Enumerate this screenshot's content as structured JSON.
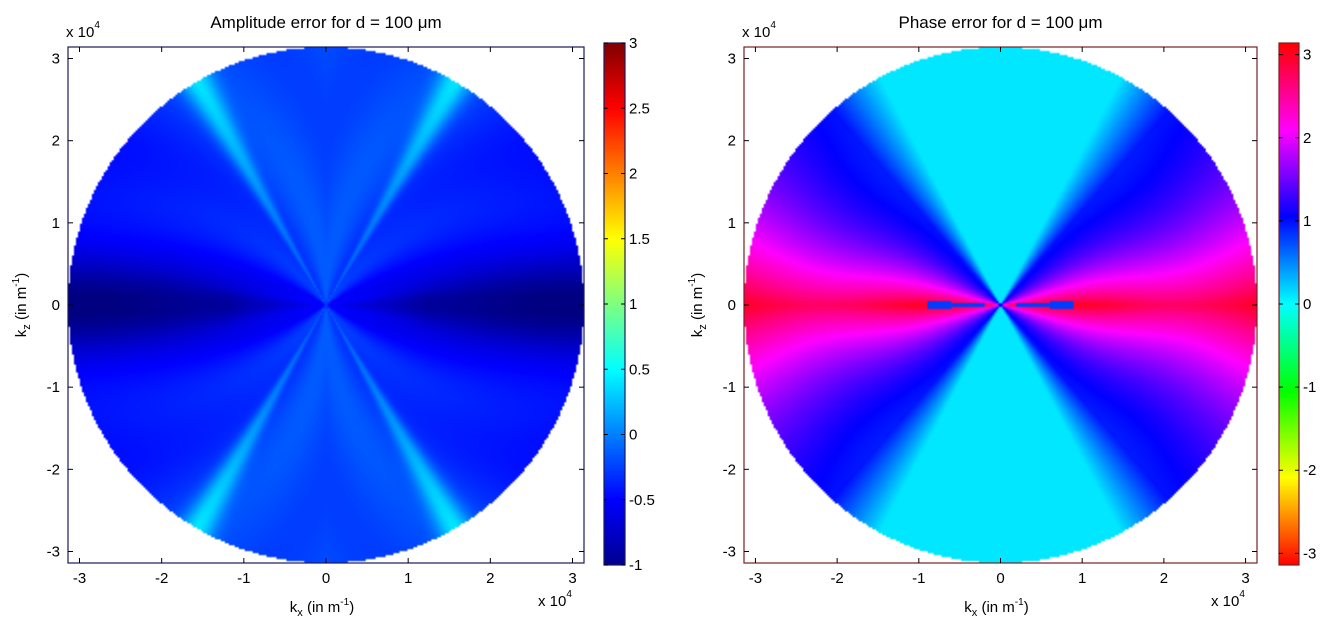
{
  "chart_data": [
    {
      "type": "heatmap",
      "title": "Amplitude error for d = 100 μm",
      "xlabel_main": "k",
      "xlabel_sub": "x",
      "xlabel_rest": " (in m",
      "xlabel_sup": "-1",
      "xlabel_end": ")",
      "ylabel_main": "k",
      "ylabel_sub": "z",
      "ylabel_rest": " (in m",
      "ylabel_sup": "-1",
      "ylabel_end": ")",
      "x_multiplier": "x 10",
      "x_multiplier_exp": "4",
      "y_multiplier": "x 10",
      "y_multiplier_exp": "4",
      "xlim": [
        -3.14,
        3.14
      ],
      "ylim": [
        -3.14,
        3.14
      ],
      "xticks": [
        -3,
        -2,
        -1,
        0,
        1,
        2,
        3
      ],
      "yticks": [
        -3,
        -2,
        -1,
        0,
        1,
        2,
        3
      ],
      "colormap": "jet",
      "colorbar": {
        "min": -1,
        "max": 3,
        "ticks": [
          3,
          2.5,
          2,
          1.5,
          1,
          0.5,
          0,
          -0.5,
          -1
        ]
      },
      "domain": "disk of radius 3.14e4 m^-1",
      "features": [
        {
          "description": "bright oblique rays",
          "angles_deg": [
            60,
            120,
            240,
            300
          ],
          "peak_value": 0.9
        },
        {
          "description": "horizontal dark lobes",
          "value": -0.95
        },
        {
          "description": "central vertical region",
          "value": -0.2
        }
      ]
    },
    {
      "type": "heatmap",
      "title": "Phase error for d = 100 μm",
      "xlabel_main": "k",
      "xlabel_sub": "x",
      "xlabel_rest": " (in m",
      "xlabel_sup": "-1",
      "xlabel_end": ")",
      "ylabel_main": "k",
      "ylabel_sub": "z",
      "ylabel_rest": " (in m",
      "ylabel_sup": "-1",
      "ylabel_end": ")",
      "x_multiplier": "x 10",
      "x_multiplier_exp": "4",
      "y_multiplier": "x 10",
      "y_multiplier_exp": "4",
      "xlim": [
        -3.14,
        3.14
      ],
      "ylim": [
        -3.14,
        3.14
      ],
      "xticks": [
        -3,
        -2,
        -1,
        0,
        1,
        2,
        3
      ],
      "yticks": [
        -3,
        -2,
        -1,
        0,
        1,
        2,
        3
      ],
      "colormap": "hsv",
      "colorbar": {
        "min": -3.14,
        "max": 3.14,
        "ticks": [
          3,
          2,
          1,
          0,
          -1,
          -2,
          -3
        ]
      },
      "domain": "disk of radius 3.14e4 m^-1",
      "features": [
        {
          "description": "central vertical region",
          "value": 0.1
        },
        {
          "description": "diagonal lobes",
          "value": 1.1
        },
        {
          "description": "horizontal lobes",
          "value": 2.6
        }
      ]
    }
  ]
}
